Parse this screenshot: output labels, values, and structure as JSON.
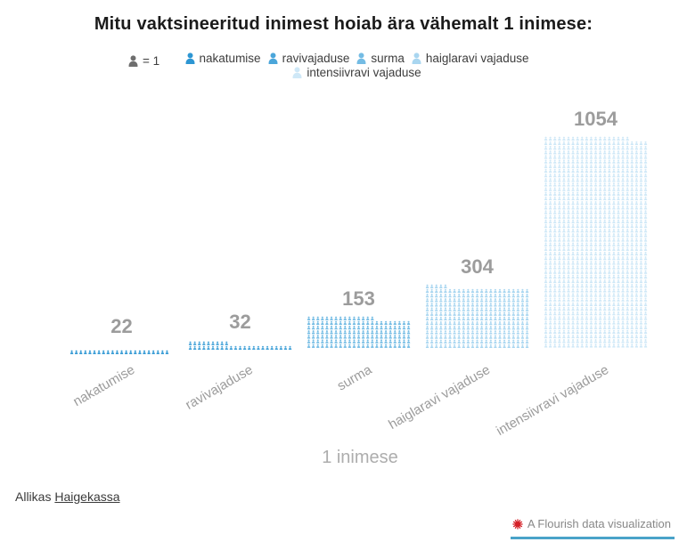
{
  "title": "Mitu vaktsineeritud inimest hoiab ära vähemalt 1 inimese:",
  "legend": {
    "key_label": "= 1",
    "key_color": "#6e6e6e",
    "items": [
      {
        "label": "nakatumise",
        "color": "#2d96d3"
      },
      {
        "label": "ravivajaduse",
        "color": "#4ba6da"
      },
      {
        "label": "surma",
        "color": "#74bce4"
      },
      {
        "label": "haiglaravi vajaduse",
        "color": "#a9d6f0"
      },
      {
        "label": "intensiivravi vajaduse",
        "color": "#cfe8f7"
      }
    ]
  },
  "chart_data": {
    "type": "pictogram-bar",
    "title": "Mitu vaktsineeritud inimest hoiab ära vähemalt 1 inimese:",
    "categories": [
      "nakatumise",
      "ravivajaduse",
      "surma",
      "haiglaravi vajaduse",
      "intensiivravi vajaduse"
    ],
    "values": [
      22,
      32,
      153,
      304,
      1054
    ],
    "series_colors": [
      "#2d96d3",
      "#4ba6da",
      "#74bce4",
      "#a9d6f0",
      "#cfe8f7"
    ],
    "icon_unit_label": "= 1",
    "icons_per_row": 23,
    "xlabel": "1 inimese",
    "ylabel": "",
    "legend_position": "top",
    "grid": false,
    "value_label_color": "#9c9c9c"
  },
  "footer": {
    "source_prefix": "Allikas ",
    "source_link": "Haigekassa"
  },
  "attribution": {
    "label": "A Flourish data visualization",
    "icon": "flourish-burst-icon",
    "icon_color": "#d42027",
    "underline_color": "#4aa3c9"
  }
}
